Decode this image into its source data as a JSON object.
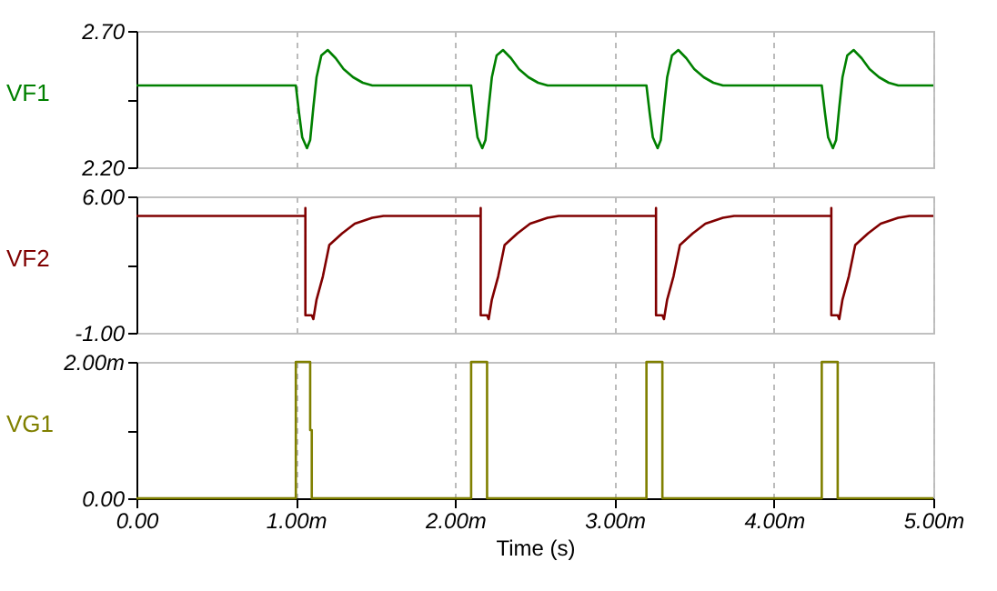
{
  "chart_data": [
    {
      "type": "line",
      "ylabel": "VF1",
      "xlim": [
        0,
        5
      ],
      "xticks": [
        0,
        1,
        2,
        3,
        4,
        5
      ],
      "ylim": [
        2.2,
        2.7
      ],
      "yticks": [
        {
          "value": 2.2,
          "label": "2.20"
        },
        {
          "value": 2.45,
          "label": null
        },
        {
          "value": 2.7,
          "label": "2.70"
        }
      ],
      "grid": "x",
      "tick_labels": "y",
      "series": [
        {
          "color": "#008000",
          "x": [
            0,
            1.0,
            1.02,
            1.04,
            1.07,
            1.09,
            1.11,
            1.13,
            1.16,
            1.2,
            1.25,
            1.3,
            1.36,
            1.42,
            1.48,
            2.1,
            2.12,
            2.14,
            2.17,
            2.19,
            2.21,
            2.23,
            2.26,
            2.3,
            2.35,
            2.4,
            2.46,
            2.52,
            2.58,
            3.2,
            3.22,
            3.24,
            3.27,
            3.29,
            3.31,
            3.33,
            3.36,
            3.4,
            3.45,
            3.5,
            3.56,
            3.62,
            3.68,
            4.3,
            4.32,
            4.34,
            4.37,
            4.39,
            4.41,
            4.43,
            4.46,
            4.5,
            4.55,
            4.6,
            4.66,
            4.72,
            4.78,
            5
          ],
          "values": [
            2.5,
            2.5,
            2.4,
            2.31,
            2.27,
            2.3,
            2.42,
            2.53,
            2.61,
            2.63,
            2.6,
            2.56,
            2.53,
            2.51,
            2.5,
            2.5,
            2.4,
            2.31,
            2.27,
            2.3,
            2.42,
            2.53,
            2.61,
            2.63,
            2.6,
            2.56,
            2.53,
            2.51,
            2.5,
            2.5,
            2.4,
            2.31,
            2.27,
            2.3,
            2.42,
            2.53,
            2.61,
            2.63,
            2.6,
            2.56,
            2.53,
            2.51,
            2.5,
            2.5,
            2.4,
            2.31,
            2.27,
            2.3,
            2.42,
            2.53,
            2.61,
            2.63,
            2.6,
            2.56,
            2.53,
            2.51,
            2.5,
            2.5
          ]
        }
      ]
    },
    {
      "type": "line",
      "ylabel": "VF2",
      "xlim": [
        0,
        5
      ],
      "xticks": [
        0,
        1,
        2,
        3,
        4,
        5
      ],
      "ylim": [
        -1,
        6
      ],
      "yticks": [
        {
          "value": -1,
          "label": "-1.00"
        },
        {
          "value": 2.5,
          "label": null
        },
        {
          "value": 6,
          "label": "6.00"
        }
      ],
      "grid": "x",
      "tick_labels": "y",
      "series": [
        {
          "color": "#800000",
          "x": [
            0,
            1.06,
            1.06,
            1.06,
            1.1,
            1.11,
            1.13,
            1.17,
            1.21,
            1.29,
            1.37,
            1.48,
            1.55,
            2.16,
            2.16,
            2.16,
            2.2,
            2.21,
            2.23,
            2.27,
            2.31,
            2.39,
            2.47,
            2.58,
            2.65,
            3.26,
            3.26,
            3.26,
            3.3,
            3.31,
            3.33,
            3.37,
            3.41,
            3.49,
            3.57,
            3.68,
            3.75,
            4.36,
            4.36,
            4.36,
            4.4,
            4.41,
            4.43,
            4.47,
            4.51,
            4.59,
            4.67,
            4.78,
            4.85,
            5
          ],
          "values": [
            5.0,
            5.0,
            5.4,
            -0.1,
            -0.1,
            -0.3,
            0.7,
            1.9,
            3.5,
            4.1,
            4.6,
            4.9,
            5.0,
            5.0,
            5.4,
            -0.1,
            -0.1,
            -0.3,
            0.7,
            1.9,
            3.5,
            4.1,
            4.6,
            4.9,
            5.0,
            5.0,
            5.4,
            -0.1,
            -0.1,
            -0.3,
            0.7,
            1.9,
            3.5,
            4.1,
            4.6,
            4.9,
            5.0,
            5.0,
            5.4,
            -0.1,
            -0.1,
            -0.3,
            0.7,
            1.9,
            3.5,
            4.1,
            4.6,
            4.9,
            5.0,
            5.0
          ]
        }
      ]
    },
    {
      "type": "line",
      "ylabel": "VG1",
      "xlabel": "Time (s)",
      "xlim": [
        0,
        5
      ],
      "xticks": [
        {
          "value": 0,
          "label": "0.00"
        },
        {
          "value": 1,
          "label": "1.00m"
        },
        {
          "value": 2,
          "label": "2.00m"
        },
        {
          "value": 3,
          "label": "3.00m"
        },
        {
          "value": 4,
          "label": "4.00m"
        },
        {
          "value": 5,
          "label": "5.00m"
        }
      ],
      "ylim": [
        0,
        2
      ],
      "yticks": [
        {
          "value": 0,
          "label": "0.00"
        },
        {
          "value": 1,
          "label": null
        },
        {
          "value": 2,
          "label": "2.00m"
        }
      ],
      "grid": "x",
      "series": [
        {
          "color": "#808000",
          "x": [
            0,
            1.0,
            1.0,
            1.09,
            1.09,
            1.1,
            1.1,
            2.1,
            2.1,
            2.2,
            2.2,
            3.2,
            3.2,
            3.3,
            3.3,
            4.3,
            4.3,
            4.4,
            4.4,
            5
          ],
          "values": [
            0,
            0,
            2,
            2,
            1,
            1,
            0,
            0,
            2,
            2,
            0,
            0,
            2,
            2,
            0,
            0,
            2,
            2,
            0,
            0
          ]
        }
      ]
    }
  ]
}
